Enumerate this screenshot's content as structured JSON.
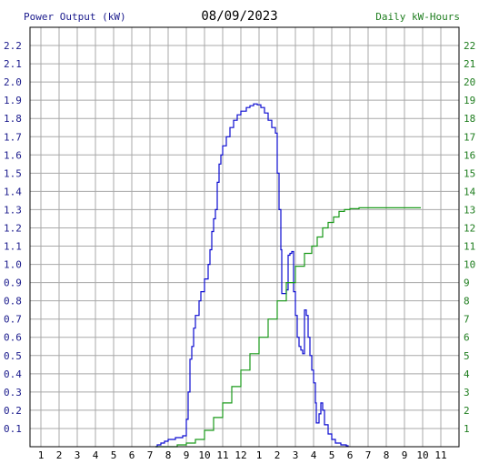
{
  "header": {
    "left_label": "Power Output (kW)",
    "date": "08/09/2023",
    "right_label": "Daily kW-Hours"
  },
  "colors": {
    "power": "#0b0bd0",
    "energy": "#1a9a1a",
    "grid": "#a8a8a8",
    "left_axis_text": "#1a1a8c",
    "right_axis_text": "#1e7d1e"
  },
  "chart_data": {
    "type": "line",
    "title": "08/09/2023",
    "x_ticks": [
      "1",
      "2",
      "3",
      "4",
      "5",
      "6",
      "7",
      "8",
      "9",
      "10",
      "11",
      "12",
      "1",
      "2",
      "3",
      "4",
      "5",
      "6",
      "7",
      "8",
      "9",
      "10",
      "11"
    ],
    "left_axis": {
      "label": "Power Output (kW)",
      "ylim": [
        0,
        2.3
      ],
      "ticks": [
        "0.1",
        "0.2",
        "0.3",
        "0.4",
        "0.5",
        "0.6",
        "0.7",
        "0.8",
        "0.9",
        "1.0",
        "1.1",
        "1.2",
        "1.3",
        "1.4",
        "1.5",
        "1.6",
        "1.7",
        "1.8",
        "1.9",
        "2.0",
        "2.1",
        "2.2"
      ]
    },
    "right_axis": {
      "label": "Daily kW-Hours",
      "ylim": [
        0,
        23
      ],
      "ticks": [
        "1",
        "2",
        "3",
        "4",
        "5",
        "6",
        "7",
        "8",
        "9",
        "10",
        "11",
        "12",
        "13",
        "14",
        "15",
        "16",
        "17",
        "18",
        "19",
        "20",
        "21",
        "22"
      ]
    },
    "grid": true,
    "series": [
      {
        "name": "Power Output (kW)",
        "axis": "left",
        "points": [
          [
            7.3,
            0.0
          ],
          [
            7.4,
            0.01
          ],
          [
            7.6,
            0.02
          ],
          [
            7.8,
            0.03
          ],
          [
            8.0,
            0.04
          ],
          [
            8.4,
            0.05
          ],
          [
            8.8,
            0.06
          ],
          [
            9.0,
            0.15
          ],
          [
            9.1,
            0.3
          ],
          [
            9.2,
            0.48
          ],
          [
            9.3,
            0.55
          ],
          [
            9.4,
            0.65
          ],
          [
            9.5,
            0.72
          ],
          [
            9.7,
            0.8
          ],
          [
            9.8,
            0.85
          ],
          [
            10.0,
            0.92
          ],
          [
            10.2,
            1.0
          ],
          [
            10.3,
            1.08
          ],
          [
            10.4,
            1.18
          ],
          [
            10.5,
            1.25
          ],
          [
            10.6,
            1.3
          ],
          [
            10.7,
            1.45
          ],
          [
            10.8,
            1.55
          ],
          [
            10.9,
            1.6
          ],
          [
            11.0,
            1.65
          ],
          [
            11.2,
            1.7
          ],
          [
            11.4,
            1.75
          ],
          [
            11.6,
            1.79
          ],
          [
            11.8,
            1.82
          ],
          [
            12.0,
            1.84
          ],
          [
            12.3,
            1.86
          ],
          [
            12.5,
            1.87
          ],
          [
            12.7,
            1.88
          ],
          [
            12.9,
            1.875
          ],
          [
            13.1,
            1.86
          ],
          [
            13.3,
            1.83
          ],
          [
            13.5,
            1.79
          ],
          [
            13.7,
            1.75
          ],
          [
            13.9,
            1.72
          ],
          [
            14.0,
            1.5
          ],
          [
            14.1,
            1.3
          ],
          [
            14.2,
            1.08
          ],
          [
            14.25,
            0.84
          ],
          [
            14.5,
            0.86
          ],
          [
            14.6,
            1.05
          ],
          [
            14.7,
            1.06
          ],
          [
            14.8,
            1.07
          ],
          [
            14.9,
            0.85
          ],
          [
            15.0,
            0.72
          ],
          [
            15.1,
            0.6
          ],
          [
            15.2,
            0.55
          ],
          [
            15.3,
            0.53
          ],
          [
            15.4,
            0.51
          ],
          [
            15.5,
            0.75
          ],
          [
            15.6,
            0.72
          ],
          [
            15.7,
            0.6
          ],
          [
            15.8,
            0.5
          ],
          [
            15.9,
            0.42
          ],
          [
            16.0,
            0.35
          ],
          [
            16.1,
            0.24
          ],
          [
            16.15,
            0.13
          ],
          [
            16.3,
            0.18
          ],
          [
            16.4,
            0.24
          ],
          [
            16.5,
            0.2
          ],
          [
            16.6,
            0.12
          ],
          [
            16.8,
            0.07
          ],
          [
            17.0,
            0.04
          ],
          [
            17.2,
            0.02
          ],
          [
            17.5,
            0.01
          ],
          [
            17.8,
            0.005
          ],
          [
            17.9,
            0.0
          ]
        ]
      },
      {
        "name": "Daily kW-Hours",
        "axis": "right",
        "points": [
          [
            7.3,
            0.0
          ],
          [
            8.5,
            0.1
          ],
          [
            9.0,
            0.2
          ],
          [
            9.5,
            0.4
          ],
          [
            10.0,
            0.9
          ],
          [
            10.5,
            1.6
          ],
          [
            11.0,
            2.4
          ],
          [
            11.5,
            3.3
          ],
          [
            12.0,
            4.2
          ],
          [
            12.5,
            5.1
          ],
          [
            13.0,
            6.0
          ],
          [
            13.5,
            7.0
          ],
          [
            14.0,
            8.0
          ],
          [
            14.5,
            9.0
          ],
          [
            15.0,
            9.9
          ],
          [
            15.5,
            10.6
          ],
          [
            15.9,
            11.0
          ],
          [
            16.2,
            11.5
          ],
          [
            16.5,
            12.0
          ],
          [
            16.8,
            12.3
          ],
          [
            17.1,
            12.6
          ],
          [
            17.4,
            12.9
          ],
          [
            17.7,
            13.0
          ],
          [
            18.0,
            13.05
          ],
          [
            18.5,
            13.1
          ],
          [
            19.0,
            13.1
          ],
          [
            21.9,
            13.1
          ]
        ]
      }
    ]
  }
}
